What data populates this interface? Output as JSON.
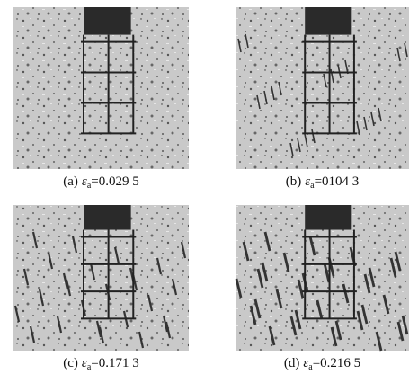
{
  "panels": [
    {
      "label": "(a)",
      "symbol": "ε",
      "subscript": "a",
      "value": "=0.029 5"
    },
    {
      "label": "(b)",
      "symbol": "ε",
      "subscript": "a",
      "value": "=0104 3"
    },
    {
      "label": "(c)",
      "symbol": "ε",
      "subscript": "a",
      "value": "=0.171 3"
    },
    {
      "label": "(d)",
      "symbol": "ε",
      "subscript": "a",
      "value": "=0.216 5"
    }
  ]
}
